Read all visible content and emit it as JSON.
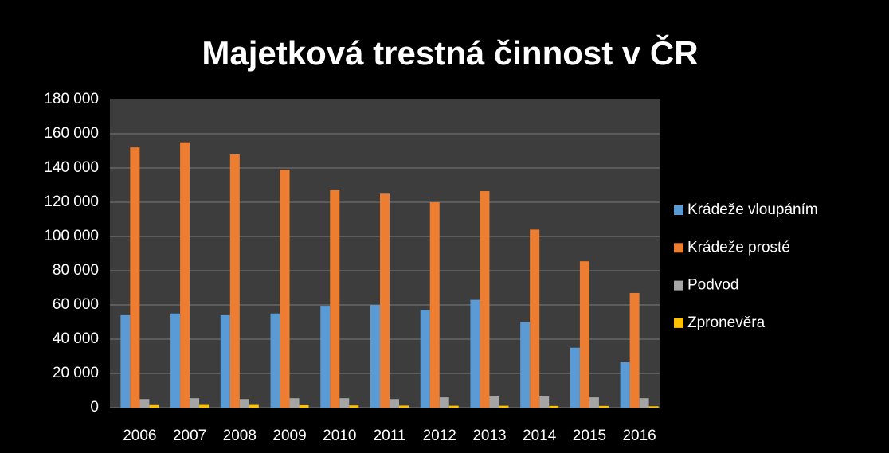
{
  "chart_data": {
    "type": "bar",
    "title": "Majetková trestná činnost v ČR",
    "categories": [
      "2006",
      "2007",
      "2008",
      "2009",
      "2010",
      "2011",
      "2012",
      "2013",
      "2014",
      "2015",
      "2016"
    ],
    "series": [
      {
        "name": "Krádeže vloupáním",
        "color": "#5b9bd5",
        "values": [
          54000,
          55000,
          54000,
          55000,
          59500,
          60000,
          57000,
          63000,
          50000,
          35000,
          26500
        ]
      },
      {
        "name": "Krádeže prosté",
        "color": "#ed7d31",
        "values": [
          152000,
          155000,
          148000,
          139000,
          127000,
          125000,
          120000,
          126500,
          104000,
          85500,
          67000
        ]
      },
      {
        "name": "Podvod",
        "color": "#a5a5a5",
        "values": [
          5000,
          5500,
          5000,
          5500,
          5500,
          5000,
          6000,
          6500,
          6500,
          6000,
          5500
        ]
      },
      {
        "name": "Zpronevěra",
        "color": "#ffc000",
        "values": [
          1500,
          1600,
          1600,
          1400,
          1300,
          1200,
          1100,
          1100,
          1000,
          1000,
          800
        ]
      }
    ],
    "ylim": [
      0,
      180000
    ],
    "yticks": [
      0,
      {
        "value": 20000,
        "label": "20 000"
      },
      {
        "value": 40000,
        "label": "40 000"
      },
      {
        "value": 60000,
        "label": "60 000"
      },
      {
        "value": 80000,
        "label": "80 000"
      },
      {
        "value": 100000,
        "label": "100 000"
      },
      {
        "value": 120000,
        "label": "120 000"
      },
      {
        "value": 140000,
        "label": "140 000"
      },
      {
        "value": 160000,
        "label": "160 000"
      },
      {
        "value": 180000,
        "label": "180 000"
      }
    ],
    "grid": true,
    "legend": "right"
  }
}
